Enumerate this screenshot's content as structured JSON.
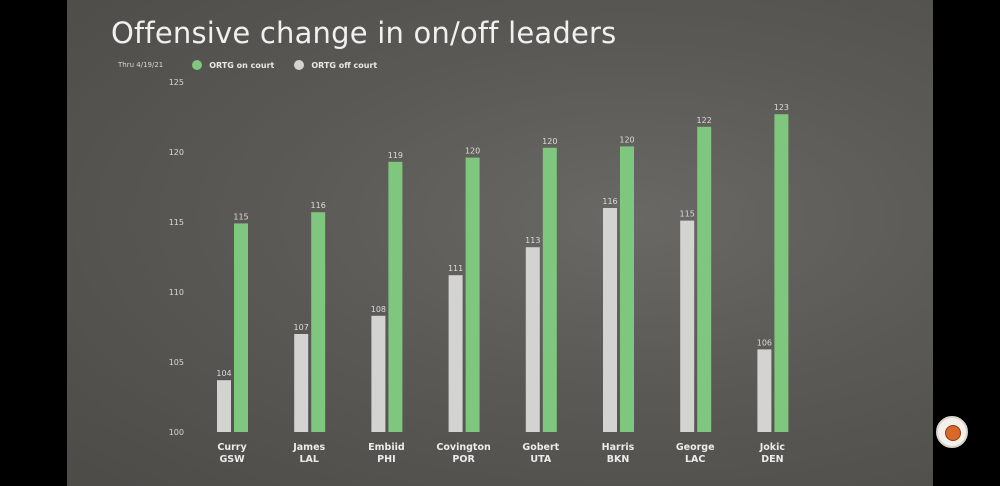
{
  "chart_data": {
    "type": "bar",
    "title": "Offensive change in on/off leaders",
    "subtitle": "Thru 4/19/21",
    "categories": [
      [
        "Curry",
        "GSW"
      ],
      [
        "James",
        "LAL"
      ],
      [
        "Embiid",
        "PHI"
      ],
      [
        "Covington",
        "POR"
      ],
      [
        "Gobert",
        "UTA"
      ],
      [
        "Harris",
        "BKN"
      ],
      [
        "George",
        "LAC"
      ],
      [
        "Jokic",
        "DEN"
      ]
    ],
    "series": [
      {
        "name": "ORTG off court",
        "color": "#d3d4d2",
        "values": [
          103.7,
          107,
          108.3,
          111.2,
          113.2,
          116,
          115.1,
          105.9
        ],
        "labels": [
          "104",
          "107",
          "108",
          "111",
          "113",
          "116",
          "115",
          "106"
        ]
      },
      {
        "name": "ORTG on court",
        "color": "#7fc67f",
        "values": [
          114.9,
          115.7,
          119.3,
          119.6,
          120.3,
          120.4,
          121.8,
          122.7
        ],
        "labels": [
          "115",
          "116",
          "119",
          "120",
          "120",
          "120",
          "122",
          "123"
        ]
      }
    ],
    "ylim": [
      100,
      125
    ],
    "yticks": [
      100,
      105,
      110,
      115,
      120,
      125
    ],
    "xlabel": "",
    "ylabel": "",
    "grid": false,
    "legend": "top-left"
  }
}
